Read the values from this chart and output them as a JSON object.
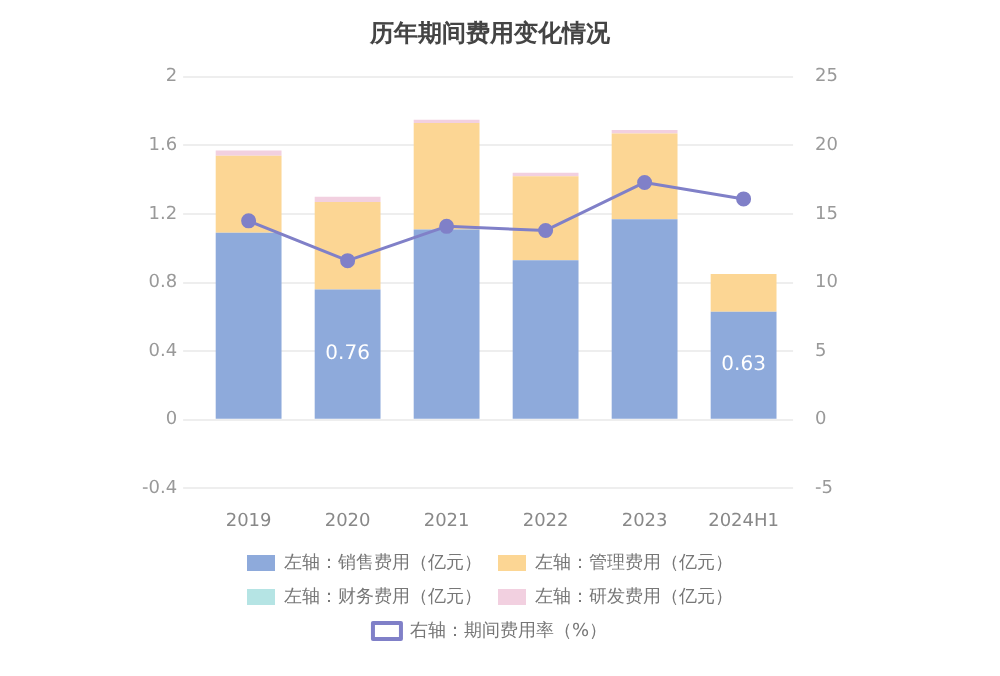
{
  "chart_data": {
    "type": "bar",
    "title": "历年期间费用变化情况",
    "stacked": true,
    "categories": [
      "2019",
      "2020",
      "2021",
      "2022",
      "2023",
      "2024H1"
    ],
    "series": [
      {
        "name": "左轴：销售费用（亿元）",
        "color": "#8eaadb",
        "values": [
          1.09,
          0.76,
          1.11,
          0.93,
          1.17,
          0.63
        ],
        "value_labels": [
          null,
          "0.76",
          null,
          null,
          null,
          "0.63"
        ]
      },
      {
        "name": "左轴：管理费用（亿元）",
        "color": "#fcd694",
        "values": [
          0.45,
          0.51,
          0.62,
          0.49,
          0.5,
          0.22
        ]
      },
      {
        "name": "左轴：财务费用（亿元）",
        "color": "#b5e4e4",
        "values": [
          null,
          null,
          null,
          null,
          null,
          null
        ]
      },
      {
        "name": "左轴：研发费用（亿元）",
        "color": "#f2d0e0",
        "values": [
          0.03,
          0.03,
          0.02,
          0.02,
          0.02,
          null
        ]
      },
      {
        "name": "右轴：期间费用率（%）",
        "type": "line",
        "axis": "y2",
        "color": "#8080c8",
        "marker": "circle",
        "values": [
          14.5,
          11.6,
          14.1,
          13.8,
          17.3,
          16.1
        ]
      }
    ],
    "ylim": [
      -0.4,
      2
    ],
    "yticks": [
      -0.4,
      0,
      0.4,
      0.8,
      1.2,
      1.6,
      2
    ],
    "y2lim": [
      -5,
      25
    ],
    "y2ticks": [
      -5,
      0,
      5,
      10,
      15,
      20,
      25
    ],
    "grid": "y",
    "legend": "bottom"
  }
}
